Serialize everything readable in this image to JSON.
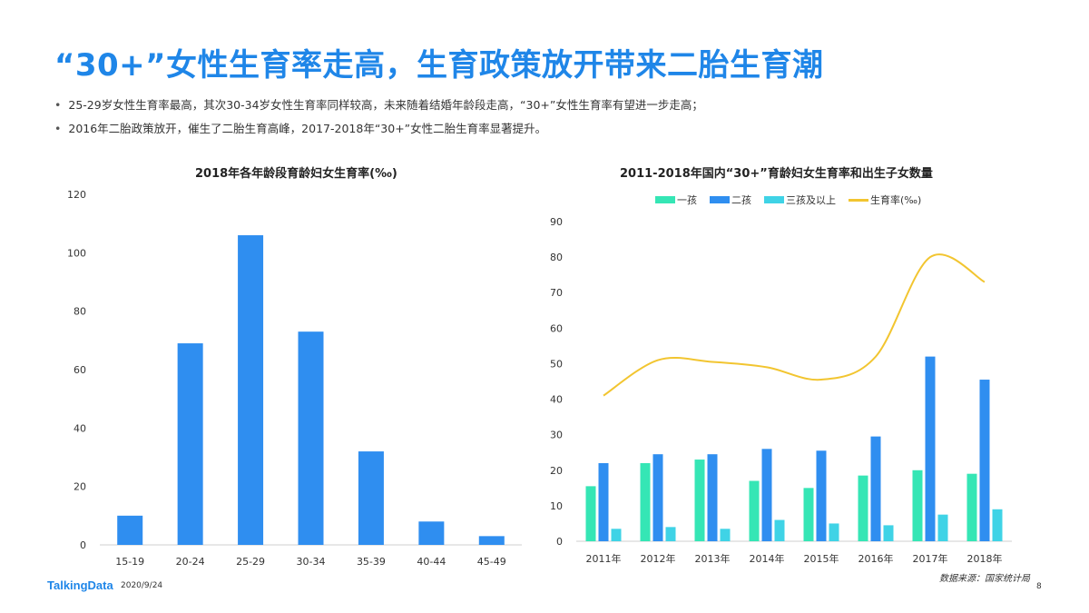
{
  "header": {
    "title": "“30+”女性生育率走高，生育政策放开带来二胎生育潮",
    "bullets": [
      "25-29岁女性生育率最高，其次30-34岁女性生育率同样较高，未来随着结婚年龄段走高，“30+”女性生育率有望进一步走高；",
      "2016年二胎政策放开，催生了二胎生育高峰，2017-2018年“30+”女性二胎生育率显著提升。"
    ]
  },
  "footer": {
    "brand": "TalkingData",
    "date": "2020/9/24",
    "source": "数据来源：国家统计局",
    "page": "8"
  },
  "colors": {
    "accent": "#1f86e8",
    "bar_blue": "#2f8ef0",
    "first_child": "#35e6b5",
    "second_child": "#2f8ef0",
    "third_child": "#3fd3e6",
    "fertility_line": "#f2c530"
  },
  "chart_data": [
    {
      "type": "bar",
      "title": "2018年各年龄段育龄妇女生育率(‰)",
      "categories": [
        "15-19",
        "20-24",
        "25-29",
        "30-34",
        "35-39",
        "40-44",
        "45-49"
      ],
      "values": [
        10,
        69,
        106,
        73,
        32,
        8,
        3
      ],
      "ylim": [
        0,
        120
      ],
      "yticks": [
        0,
        20,
        40,
        60,
        80,
        100,
        120
      ],
      "grid": false
    },
    {
      "type": "bar+line",
      "title": "2011-2018年国内“30+”育龄妇女生育率和出生子女数量",
      "categories": [
        "2011年",
        "2012年",
        "2013年",
        "2014年",
        "2015年",
        "2016年",
        "2017年",
        "2018年"
      ],
      "series": [
        {
          "name": "一孩",
          "type": "bar",
          "values": [
            15.5,
            22,
            23,
            17,
            15,
            18.5,
            20,
            19
          ]
        },
        {
          "name": "二孩",
          "type": "bar",
          "values": [
            22,
            24.5,
            24.5,
            26,
            25.5,
            29.5,
            52,
            45.5
          ]
        },
        {
          "name": "三孩及以上",
          "type": "bar",
          "values": [
            3.5,
            4,
            3.5,
            6,
            5,
            4.5,
            7.5,
            9
          ]
        },
        {
          "name": "生育率(‰)",
          "type": "line",
          "values": [
            41,
            51,
            50.5,
            49,
            45.5,
            52,
            80,
            73
          ]
        }
      ],
      "ylim": [
        0,
        90
      ],
      "yticks": [
        0,
        10,
        20,
        30,
        40,
        50,
        60,
        70,
        80,
        90
      ],
      "legend": "top",
      "grid": false
    }
  ]
}
